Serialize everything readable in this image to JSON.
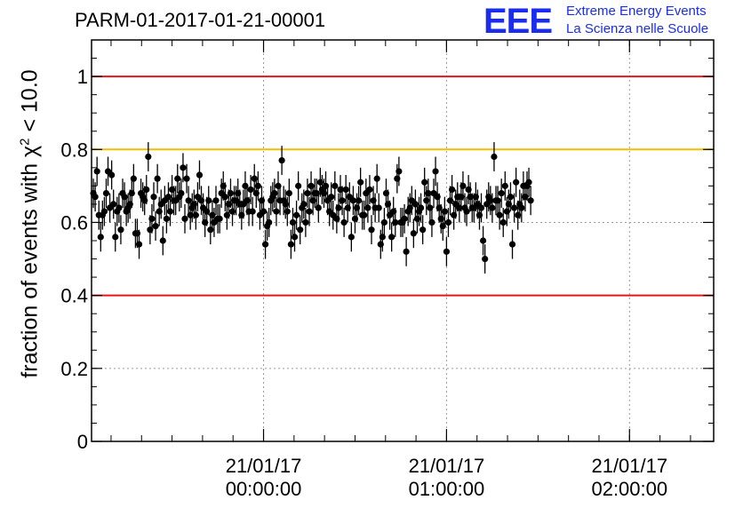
{
  "header": {
    "run_title": "PARM-01-2017-01-21-00001",
    "logo_text": "EEE",
    "org_line1": "Extreme Energy Events",
    "org_line2": "La Scienza nelle Scuole"
  },
  "chart_data": {
    "type": "scatter",
    "title": "PARM-01-2017-01-21-00001",
    "ylabel_prefix": "fraction of events with",
    "ylabel_symbol": "χ",
    "ylabel_sup": "2",
    "ylabel_suffix": " < 10.0",
    "xlabel": "",
    "ylim": [
      0,
      1.1
    ],
    "yticks": [
      0,
      0.2,
      0.4,
      0.6,
      0.8,
      1
    ],
    "ytick_labels": [
      "0",
      "0.2",
      "0.4",
      "0.6",
      "0.8",
      "1"
    ],
    "xlim_hours": [
      -0.94,
      2.46
    ],
    "xtick_hours": [
      0,
      1,
      2
    ],
    "xtick_labels": [
      [
        "21/01/17",
        "00:00:00"
      ],
      [
        "21/01/17",
        "01:00:00"
      ],
      [
        "21/01/17",
        "02:00:00"
      ]
    ],
    "grid": true,
    "error_bar": 0.04,
    "reference_lines": [
      {
        "y": 1.0,
        "color": "#e8141a"
      },
      {
        "y": 0.8,
        "color": "#f2be00"
      },
      {
        "y": 0.4,
        "color": "#e8141a"
      }
    ],
    "series": [
      {
        "color": "#000000",
        "x_start_hours": -0.93,
        "x_step_hours": 0.01,
        "values": [
          0.68,
          0.67,
          0.74,
          0.62,
          0.56,
          0.62,
          0.63,
          0.68,
          0.74,
          0.64,
          0.73,
          0.65,
          0.56,
          0.63,
          0.64,
          0.58,
          0.68,
          0.67,
          0.63,
          0.64,
          0.65,
          0.68,
          0.72,
          0.57,
          0.57,
          0.54,
          0.68,
          0.67,
          0.66,
          0.69,
          0.78,
          0.58,
          0.61,
          0.67,
          0.59,
          0.72,
          0.63,
          0.65,
          0.55,
          0.66,
          0.61,
          0.67,
          0.63,
          0.69,
          0.66,
          0.66,
          0.72,
          0.67,
          0.68,
          0.75,
          0.61,
          0.72,
          0.66,
          0.62,
          0.64,
          0.65,
          0.62,
          0.67,
          0.73,
          0.66,
          0.64,
          0.6,
          0.63,
          0.66,
          0.58,
          0.62,
          0.6,
          0.66,
          0.61,
          0.61,
          0.68,
          0.7,
          0.67,
          0.62,
          0.65,
          0.68,
          0.63,
          0.66,
          0.66,
          0.68,
          0.65,
          0.62,
          0.65,
          0.7,
          0.66,
          0.63,
          0.69,
          0.63,
          0.72,
          0.68,
          0.7,
          0.62,
          0.66,
          0.63,
          0.54,
          0.59,
          0.6,
          0.66,
          0.67,
          0.68,
          0.63,
          0.7,
          0.66,
          0.77,
          0.66,
          0.65,
          0.63,
          0.68,
          0.54,
          0.6,
          0.56,
          0.62,
          0.7,
          0.58,
          0.64,
          0.65,
          0.6,
          0.68,
          0.63,
          0.7,
          0.66,
          0.68,
          0.68,
          0.64,
          0.71,
          0.69,
          0.68,
          0.7,
          0.66,
          0.63,
          0.67,
          0.62,
          0.7,
          0.61,
          0.64,
          0.69,
          0.66,
          0.6,
          0.69,
          0.64,
          0.67,
          0.56,
          0.66,
          0.61,
          0.64,
          0.66,
          0.71,
          0.62,
          0.62,
          0.68,
          0.64,
          0.69,
          0.58,
          0.66,
          0.64,
          0.72,
          0.64,
          0.54,
          0.56,
          0.6,
          0.68,
          0.65,
          0.62,
          0.56,
          0.63,
          0.6,
          0.72,
          0.74,
          0.6,
          0.6,
          0.61,
          0.52,
          0.63,
          0.64,
          0.66,
          0.57,
          0.65,
          0.61,
          0.63,
          0.64,
          0.58,
          0.71,
          0.66,
          0.68,
          0.64,
          0.6,
          0.68,
          0.74,
          0.67,
          0.64,
          0.61,
          0.59,
          0.63,
          0.52,
          0.6,
          0.66,
          0.69,
          0.62,
          0.65,
          0.67,
          0.64,
          0.67,
          0.7,
          0.64,
          0.63,
          0.69,
          0.67,
          0.64,
          0.64,
          0.67,
          0.65,
          0.62,
          0.64,
          0.55,
          0.5,
          0.65,
          0.67,
          0.66,
          0.64,
          0.78,
          0.66,
          0.66,
          0.62,
          0.68,
          0.6,
          0.7,
          0.63,
          0.65,
          0.67,
          0.54,
          0.64,
          0.71,
          0.62,
          0.65,
          0.64,
          0.7,
          0.67,
          0.7,
          0.71,
          0.66
        ]
      }
    ]
  }
}
